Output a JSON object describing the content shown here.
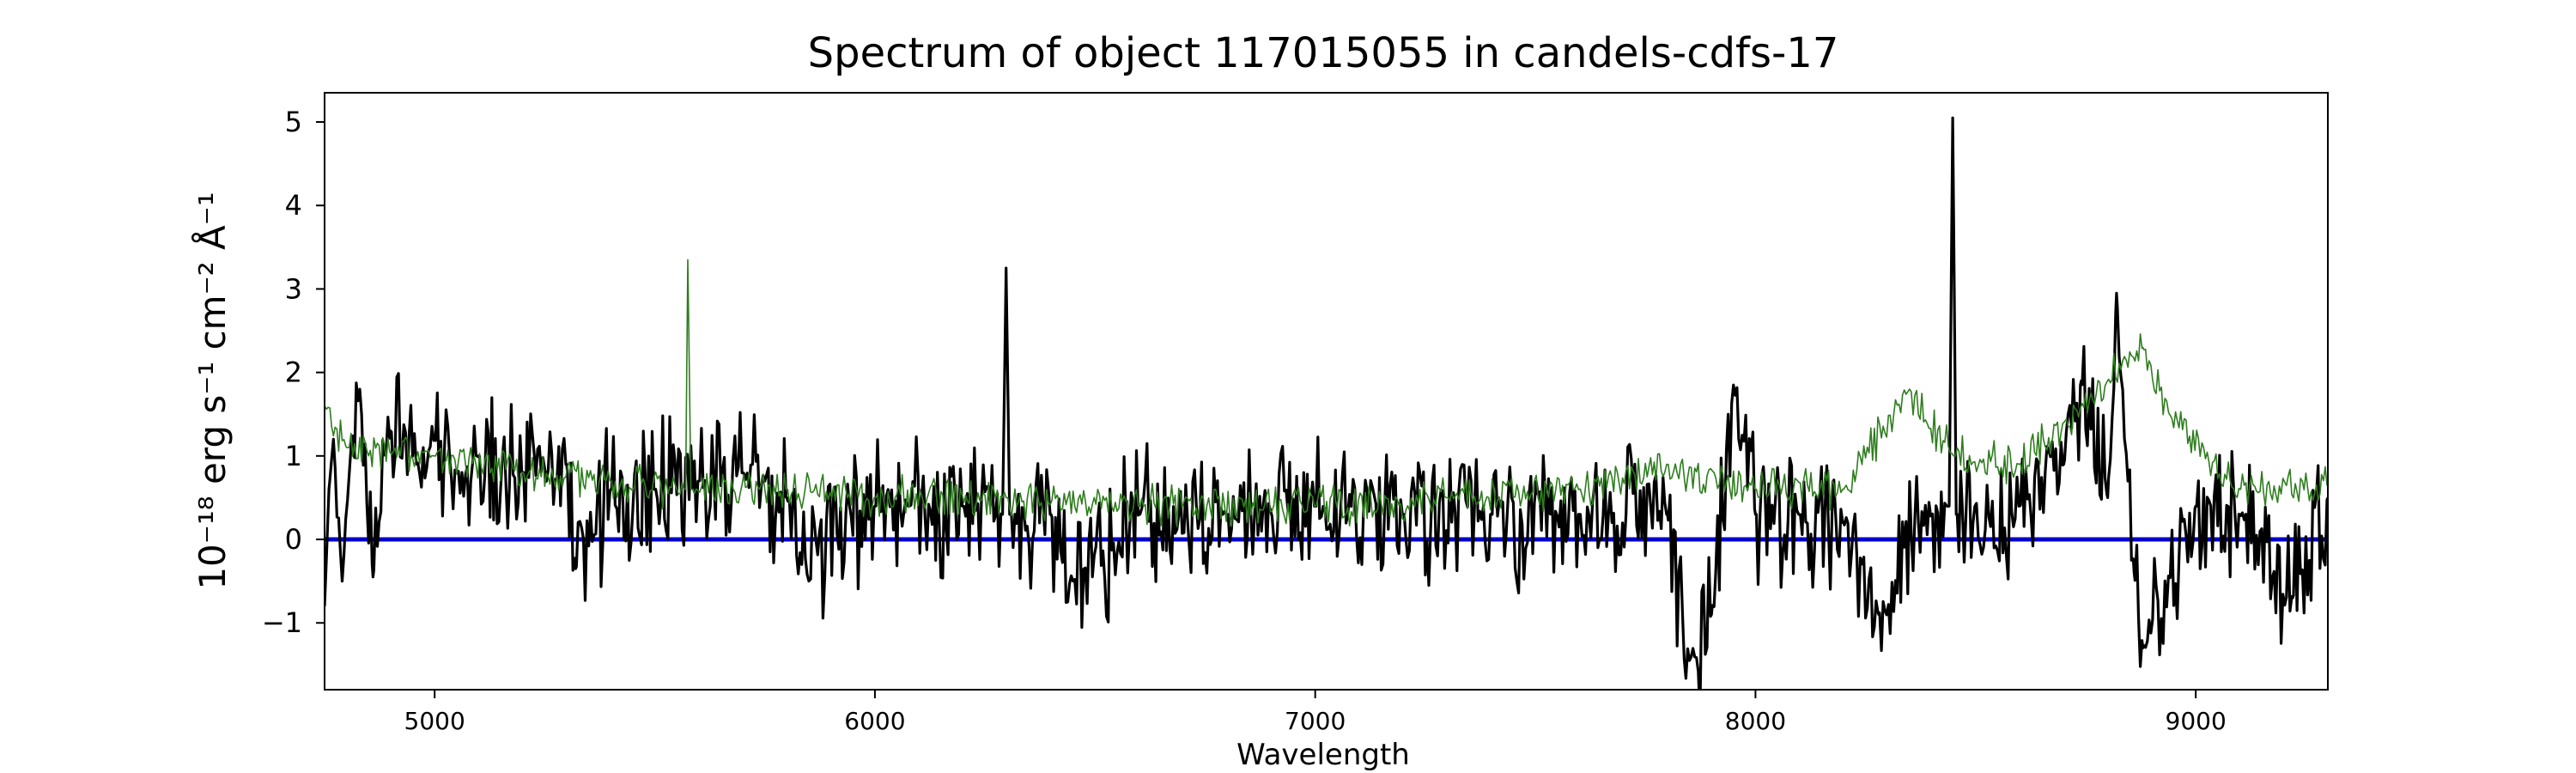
{
  "chart_data": {
    "type": "line",
    "title": "Spectrum of object 117015055 in candels-cdfs-17",
    "xlabel": "Wavelength",
    "ylabel": "10⁻¹⁸ erg s⁻¹ cm⁻² Å⁻¹",
    "xlim": [
      4750,
      9300
    ],
    "ylim": [
      -1.8,
      5.35
    ],
    "grid": false,
    "xticks": [
      5000,
      6000,
      7000,
      8000,
      9000
    ],
    "yticks": [
      -1,
      0,
      1,
      2,
      3,
      4,
      5
    ],
    "x_range": [
      4750,
      9300
    ],
    "colors": {
      "spectrum": "#000000",
      "model": "#2e7d1e",
      "zero_line": "#0000cc"
    },
    "zero_line": 0,
    "series": [
      {
        "role": "spectrum",
        "keypoints": [
          [
            4750,
            -0.8
          ],
          [
            4760,
            0.6
          ],
          [
            4770,
            1.2
          ],
          [
            4790,
            -0.5
          ],
          [
            4810,
            1.1
          ],
          [
            4830,
            1.8
          ],
          [
            4860,
            -0.45
          ],
          [
            4900,
            1.3
          ],
          [
            4960,
            0.9
          ],
          [
            5000,
            1.2
          ],
          [
            5050,
            0.8
          ],
          [
            5100,
            1.0
          ],
          [
            5200,
            0.8
          ],
          [
            5300,
            0.9
          ],
          [
            5320,
            -0.35
          ],
          [
            5400,
            0.6
          ],
          [
            5500,
            0.6
          ],
          [
            5600,
            0.7
          ],
          [
            5700,
            0.8
          ],
          [
            5800,
            0.5
          ],
          [
            5850,
            -0.5
          ],
          [
            6000,
            0.4
          ],
          [
            6200,
            0.4
          ],
          [
            6290,
            0.3
          ],
          [
            6298,
            3.25
          ],
          [
            6306,
            0.3
          ],
          [
            6400,
            0.3
          ],
          [
            6450,
            -0.5
          ],
          [
            6600,
            0.3
          ],
          [
            6800,
            0.3
          ],
          [
            7000,
            0.4
          ],
          [
            7200,
            0.3
          ],
          [
            7400,
            0.3
          ],
          [
            7600,
            0.3
          ],
          [
            7800,
            0.3
          ],
          [
            7850,
            -1.45
          ],
          [
            7900,
            -0.9
          ],
          [
            7950,
            1.85
          ],
          [
            8000,
            0.3
          ],
          [
            8100,
            0.3
          ],
          [
            8200,
            0.2
          ],
          [
            8280,
            -0.9
          ],
          [
            8400,
            0.3
          ],
          [
            8440,
            0.4
          ],
          [
            8448,
            5.05
          ],
          [
            8456,
            0.3
          ],
          [
            8600,
            0.4
          ],
          [
            8700,
            0.9
          ],
          [
            8740,
            1.9
          ],
          [
            8800,
            0.5
          ],
          [
            8820,
            2.95
          ],
          [
            8860,
            -0.4
          ],
          [
            8880,
            -1.3
          ],
          [
            9000,
            0.4
          ],
          [
            9100,
            0.3
          ],
          [
            9220,
            -0.7
          ],
          [
            9300,
            0.5
          ]
        ]
      },
      {
        "role": "model",
        "keypoints": [
          [
            4750,
            1.6
          ],
          [
            4800,
            1.1
          ],
          [
            5000,
            1.0
          ],
          [
            5200,
            0.8
          ],
          [
            5400,
            0.7
          ],
          [
            5570,
            0.6
          ],
          [
            5575,
            3.35
          ],
          [
            5582,
            0.6
          ],
          [
            5800,
            0.6
          ],
          [
            6000,
            0.5
          ],
          [
            6300,
            0.5
          ],
          [
            6600,
            0.4
          ],
          [
            7000,
            0.4
          ],
          [
            7300,
            0.5
          ],
          [
            7600,
            0.6
          ],
          [
            7800,
            0.9
          ],
          [
            8000,
            0.6
          ],
          [
            8200,
            0.6
          ],
          [
            8350,
            1.8
          ],
          [
            8450,
            1.0
          ],
          [
            8600,
            0.9
          ],
          [
            8700,
            1.4
          ],
          [
            8880,
            2.3
          ],
          [
            8940,
            1.5
          ],
          [
            9100,
            0.6
          ],
          [
            9300,
            0.65
          ]
        ]
      }
    ]
  }
}
